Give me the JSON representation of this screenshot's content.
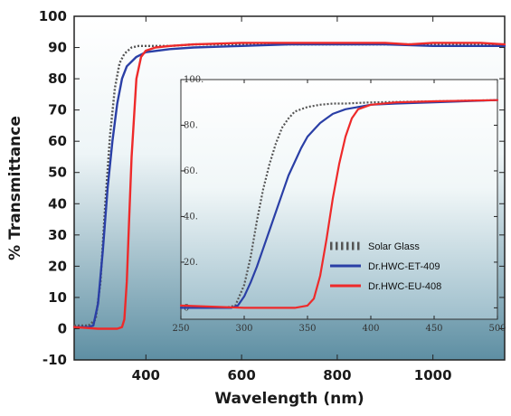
{
  "chart_data": [
    {
      "type": "line",
      "title": "",
      "xlabel": "Wavelength (nm)",
      "ylabel": "% Transmittance",
      "xlim": [
        250,
        1150
      ],
      "ylim": [
        -10,
        100
      ],
      "x_ticks": [
        400,
        600,
        800,
        1000
      ],
      "y_ticks": [
        -10,
        0,
        10,
        20,
        30,
        40,
        50,
        60,
        70,
        80,
        90,
        100
      ],
      "grid": false,
      "series": [
        {
          "name": "Solar Glass",
          "color": "#555555",
          "style": "dotted",
          "x": [
            250,
            280,
            295,
            305,
            315,
            325,
            335,
            345,
            355,
            370,
            385,
            400,
            450,
            500,
            600,
            700,
            800,
            900,
            1000,
            1100,
            1150
          ],
          "y": [
            1,
            1,
            3,
            15,
            40,
            62,
            77,
            85,
            88,
            90,
            90.5,
            90.5,
            90.5,
            91,
            91,
            91,
            91,
            91,
            91,
            91,
            91
          ]
        },
        {
          "name": "Dr.HWC-ET-409",
          "color": "#2a3fa6",
          "style": "solid",
          "x": [
            250,
            280,
            290,
            300,
            310,
            320,
            330,
            340,
            350,
            360,
            380,
            400,
            450,
            500,
            600,
            700,
            800,
            900,
            1000,
            1100,
            1150
          ],
          "y": [
            0.5,
            0.5,
            1,
            8,
            25,
            45,
            60,
            72,
            80,
            84,
            87,
            88.5,
            89.5,
            90,
            90.5,
            91,
            91,
            91,
            90.5,
            90.5,
            90.5
          ]
        },
        {
          "name": "Dr.HWC-EU-408",
          "color": "#ee2a2a",
          "style": "solid",
          "x": [
            250,
            300,
            330,
            340,
            350,
            355,
            360,
            365,
            370,
            380,
            390,
            400,
            420,
            450,
            500,
            600,
            700,
            800,
            900,
            950,
            1000,
            1100,
            1150
          ],
          "y": [
            0.5,
            0,
            0,
            0,
            0.5,
            3,
            15,
            35,
            55,
            80,
            87,
            89,
            90,
            90.5,
            91,
            91.5,
            91.5,
            91.5,
            91.5,
            91,
            91.5,
            91.5,
            91
          ]
        }
      ]
    },
    {
      "type": "line",
      "title": "",
      "xlabel": "",
      "ylabel": "",
      "xlim": [
        250,
        500
      ],
      "ylim": [
        -5,
        100
      ],
      "x_ticks": [
        250,
        300,
        350,
        400,
        450,
        500
      ],
      "y_ticks": [
        0,
        20,
        40,
        60,
        80,
        100
      ],
      "grid": false,
      "legend": "lower-right",
      "series": [
        {
          "name": "Solar Glass",
          "color": "#555555",
          "style": "dotted",
          "x": [
            250,
            285,
            293,
            300,
            305,
            310,
            315,
            320,
            325,
            330,
            335,
            340,
            350,
            360,
            370,
            380,
            400,
            450,
            500
          ],
          "y": [
            0,
            0,
            1,
            10,
            22,
            38,
            52,
            63,
            72,
            79,
            83,
            86,
            88,
            89,
            89.5,
            89.5,
            90,
            90.5,
            91
          ]
        },
        {
          "name": "Dr.HWC-ET-409",
          "color": "#2a3fa6",
          "style": "solid",
          "x": [
            250,
            290,
            295,
            300,
            305,
            310,
            315,
            320,
            325,
            330,
            335,
            340,
            345,
            350,
            355,
            360,
            365,
            370,
            380,
            390,
            400,
            420,
            450,
            500
          ],
          "y": [
            0,
            0,
            1,
            5,
            11,
            18,
            26,
            34,
            42,
            50,
            58,
            64,
            70,
            75,
            78,
            81,
            83,
            85,
            87,
            88,
            89,
            89.5,
            90,
            91
          ]
        },
        {
          "name": "Dr.HWC-EU-408",
          "color": "#ee2a2a",
          "style": "solid",
          "x": [
            250,
            300,
            340,
            350,
            355,
            360,
            365,
            370,
            375,
            380,
            385,
            390,
            400,
            420,
            450,
            500
          ],
          "y": [
            1,
            0,
            0,
            1,
            4,
            14,
            30,
            48,
            63,
            75,
            83,
            87,
            89,
            90,
            90.5,
            91
          ]
        }
      ]
    }
  ]
}
